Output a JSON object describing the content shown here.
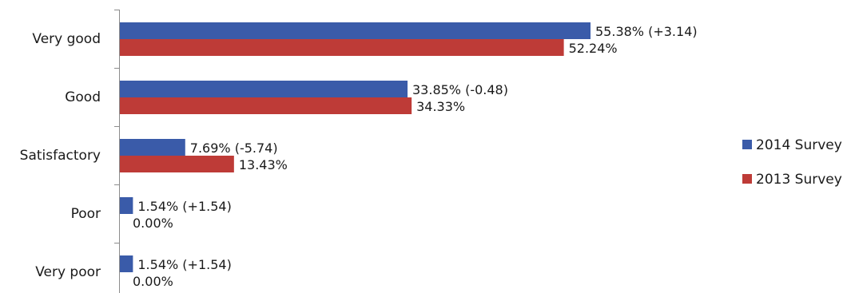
{
  "chart_data": {
    "type": "bar",
    "orientation": "horizontal",
    "categories": [
      "Very good",
      "Good",
      "Satisfactory",
      "Poor",
      "Very poor"
    ],
    "series": [
      {
        "name": "2014 Survey",
        "color": "#3a5ba9",
        "values": [
          55.38,
          33.85,
          7.69,
          1.54,
          1.54
        ],
        "labels": [
          "55.38% (+3.14)",
          "33.85% (-0.48)",
          "7.69% (-5.74)",
          "1.54% (+1.54)",
          "1.54% (+1.54)"
        ]
      },
      {
        "name": "2013 Survey",
        "color": "#be3b37",
        "values": [
          52.24,
          34.33,
          13.43,
          0.0,
          0.0
        ],
        "labels": [
          "52.24%",
          "34.33%",
          "13.43%",
          "0.00%",
          "0.00%"
        ]
      }
    ],
    "xlim": [
      0,
      100
    ],
    "grid": false,
    "legend_position": "right",
    "title": "",
    "xlabel": "",
    "ylabel": ""
  }
}
